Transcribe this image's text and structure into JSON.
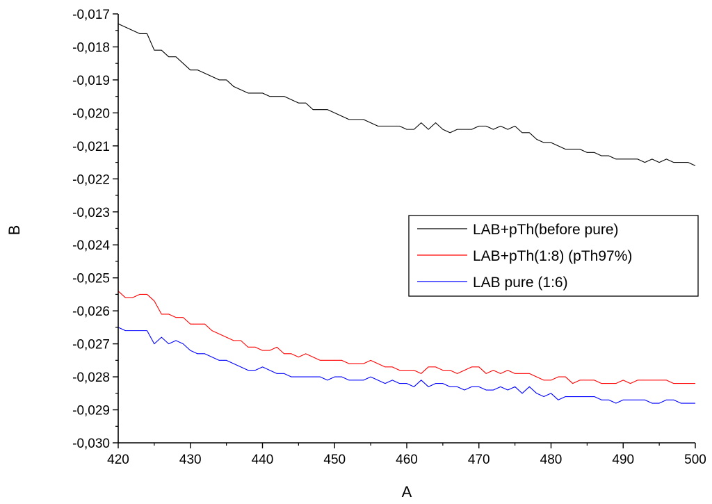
{
  "chart_data": {
    "type": "line",
    "title": "",
    "xlabel": "A",
    "ylabel": "B",
    "xlim": [
      420,
      500
    ],
    "ylim": [
      -0.03,
      -0.017
    ],
    "x_ticks": [
      420,
      430,
      440,
      450,
      460,
      470,
      480,
      490,
      500
    ],
    "x_tick_labels": [
      "420",
      "430",
      "440",
      "450",
      "460",
      "470",
      "480",
      "490",
      "500"
    ],
    "y_ticks": [
      -0.017,
      -0.018,
      -0.019,
      -0.02,
      -0.021,
      -0.022,
      -0.023,
      -0.024,
      -0.025,
      -0.026,
      -0.027,
      -0.028,
      -0.029,
      -0.03
    ],
    "y_tick_labels": [
      "-0,017",
      "-0,018",
      "-0,019",
      "-0,020",
      "-0,021",
      "-0,022",
      "-0,023",
      "-0,024",
      "-0,025",
      "-0,026",
      "-0,027",
      "-0,028",
      "-0,029",
      "-0,030"
    ],
    "grid": false,
    "legend_position": "center-right",
    "series": [
      {
        "name": "LAB+pTh(before pure)",
        "color": "#000000",
        "x": [
          420,
          421,
          422,
          423,
          424,
          425,
          426,
          427,
          428,
          429,
          430,
          431,
          432,
          433,
          434,
          435,
          436,
          437,
          438,
          439,
          440,
          441,
          442,
          443,
          444,
          445,
          446,
          447,
          448,
          449,
          450,
          451,
          452,
          453,
          454,
          455,
          456,
          457,
          458,
          459,
          460,
          461,
          462,
          463,
          464,
          465,
          466,
          467,
          468,
          469,
          470,
          471,
          472,
          473,
          474,
          475,
          476,
          477,
          478,
          479,
          480,
          481,
          482,
          483,
          484,
          485,
          486,
          487,
          488,
          489,
          490,
          491,
          492,
          493,
          494,
          495,
          496,
          497,
          498,
          499,
          500
        ],
        "y": [
          -0.0173,
          -0.0174,
          -0.0175,
          -0.0176,
          -0.0176,
          -0.0181,
          -0.0181,
          -0.0183,
          -0.0183,
          -0.0185,
          -0.0187,
          -0.0187,
          -0.0188,
          -0.0189,
          -0.019,
          -0.019,
          -0.0192,
          -0.0193,
          -0.0194,
          -0.0194,
          -0.0194,
          -0.0195,
          -0.0195,
          -0.0195,
          -0.0196,
          -0.0197,
          -0.0197,
          -0.0199,
          -0.0199,
          -0.0199,
          -0.02,
          -0.0201,
          -0.0202,
          -0.0202,
          -0.0202,
          -0.0203,
          -0.0204,
          -0.0204,
          -0.0204,
          -0.0204,
          -0.0205,
          -0.0205,
          -0.0203,
          -0.0205,
          -0.0203,
          -0.0205,
          -0.0206,
          -0.0205,
          -0.0205,
          -0.0205,
          -0.0204,
          -0.0204,
          -0.0205,
          -0.0204,
          -0.0205,
          -0.0204,
          -0.0206,
          -0.0206,
          -0.0208,
          -0.0209,
          -0.0209,
          -0.021,
          -0.0211,
          -0.0211,
          -0.0211,
          -0.0212,
          -0.0212,
          -0.0213,
          -0.0213,
          -0.0214,
          -0.0214,
          -0.0214,
          -0.0214,
          -0.0215,
          -0.0214,
          -0.0215,
          -0.0214,
          -0.0215,
          -0.0215,
          -0.0215,
          -0.0216
        ]
      },
      {
        "name": "LAB+pTh(1:8) (pTh97%)",
        "color": "#ff0000",
        "x": [
          420,
          421,
          422,
          423,
          424,
          425,
          426,
          427,
          428,
          429,
          430,
          431,
          432,
          433,
          434,
          435,
          436,
          437,
          438,
          439,
          440,
          441,
          442,
          443,
          444,
          445,
          446,
          447,
          448,
          449,
          450,
          451,
          452,
          453,
          454,
          455,
          456,
          457,
          458,
          459,
          460,
          461,
          462,
          463,
          464,
          465,
          466,
          467,
          468,
          469,
          470,
          471,
          472,
          473,
          474,
          475,
          476,
          477,
          478,
          479,
          480,
          481,
          482,
          483,
          484,
          485,
          486,
          487,
          488,
          489,
          490,
          491,
          492,
          493,
          494,
          495,
          496,
          497,
          498,
          499,
          500
        ],
        "y": [
          -0.0254,
          -0.0256,
          -0.0256,
          -0.0255,
          -0.0255,
          -0.0257,
          -0.0261,
          -0.0261,
          -0.0262,
          -0.0262,
          -0.0264,
          -0.0264,
          -0.0264,
          -0.0266,
          -0.0267,
          -0.0268,
          -0.0269,
          -0.0269,
          -0.0271,
          -0.0271,
          -0.0272,
          -0.0272,
          -0.0271,
          -0.0273,
          -0.0273,
          -0.0274,
          -0.0273,
          -0.0274,
          -0.0275,
          -0.0275,
          -0.0275,
          -0.0275,
          -0.0276,
          -0.0276,
          -0.0276,
          -0.0275,
          -0.0276,
          -0.0277,
          -0.0277,
          -0.0278,
          -0.0278,
          -0.0278,
          -0.0279,
          -0.0277,
          -0.0277,
          -0.0278,
          -0.0278,
          -0.0279,
          -0.0278,
          -0.0277,
          -0.0277,
          -0.0279,
          -0.0278,
          -0.0279,
          -0.0278,
          -0.0279,
          -0.0279,
          -0.0279,
          -0.028,
          -0.0281,
          -0.0281,
          -0.028,
          -0.028,
          -0.0282,
          -0.0281,
          -0.0281,
          -0.0281,
          -0.0282,
          -0.0282,
          -0.0282,
          -0.0281,
          -0.0282,
          -0.0281,
          -0.0281,
          -0.0281,
          -0.0281,
          -0.0281,
          -0.0282,
          -0.0282,
          -0.0282,
          -0.0282
        ]
      },
      {
        "name": "LAB pure (1:6)",
        "color": "#0000ff",
        "x": [
          420,
          421,
          422,
          423,
          424,
          425,
          426,
          427,
          428,
          429,
          430,
          431,
          432,
          433,
          434,
          435,
          436,
          437,
          438,
          439,
          440,
          441,
          442,
          443,
          444,
          445,
          446,
          447,
          448,
          449,
          450,
          451,
          452,
          453,
          454,
          455,
          456,
          457,
          458,
          459,
          460,
          461,
          462,
          463,
          464,
          465,
          466,
          467,
          468,
          469,
          470,
          471,
          472,
          473,
          474,
          475,
          476,
          477,
          478,
          479,
          480,
          481,
          482,
          483,
          484,
          485,
          486,
          487,
          488,
          489,
          490,
          491,
          492,
          493,
          494,
          495,
          496,
          497,
          498,
          499,
          500
        ],
        "y": [
          -0.0265,
          -0.0266,
          -0.0266,
          -0.0266,
          -0.0266,
          -0.027,
          -0.0268,
          -0.027,
          -0.0269,
          -0.027,
          -0.0272,
          -0.0273,
          -0.0273,
          -0.0274,
          -0.0275,
          -0.0275,
          -0.0276,
          -0.0277,
          -0.0278,
          -0.0278,
          -0.0277,
          -0.0278,
          -0.0279,
          -0.0279,
          -0.028,
          -0.028,
          -0.028,
          -0.028,
          -0.028,
          -0.0281,
          -0.028,
          -0.028,
          -0.0281,
          -0.0281,
          -0.0281,
          -0.028,
          -0.0281,
          -0.0282,
          -0.0281,
          -0.0282,
          -0.0282,
          -0.0283,
          -0.0281,
          -0.0283,
          -0.0282,
          -0.0282,
          -0.0283,
          -0.0283,
          -0.0284,
          -0.0283,
          -0.0283,
          -0.0284,
          -0.0284,
          -0.0283,
          -0.0284,
          -0.0283,
          -0.0285,
          -0.0283,
          -0.0285,
          -0.0286,
          -0.0285,
          -0.0287,
          -0.0286,
          -0.0286,
          -0.0286,
          -0.0286,
          -0.0286,
          -0.0287,
          -0.0287,
          -0.0288,
          -0.0287,
          -0.0287,
          -0.0287,
          -0.0287,
          -0.0288,
          -0.0288,
          -0.0287,
          -0.0287,
          -0.0288,
          -0.0288,
          -0.0288
        ]
      }
    ]
  }
}
